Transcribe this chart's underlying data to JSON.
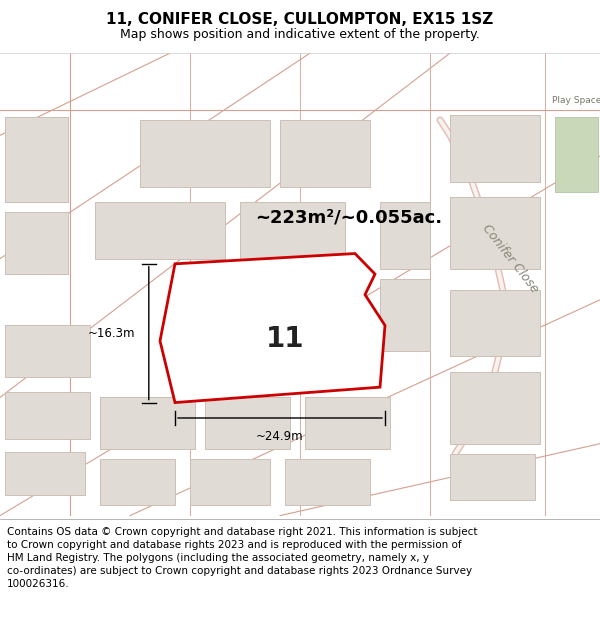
{
  "title": "11, CONIFER CLOSE, CULLOMPTON, EX15 1SZ",
  "subtitle": "Map shows position and indicative extent of the property.",
  "area_label": "~223m²/~0.055ac.",
  "plot_number": "11",
  "width_label": "~24.9m",
  "height_label": "~16.3m",
  "street_label": "Conifer Close",
  "play_space_label": "Play Space",
  "footer": "Contains OS data © Crown copyright and database right 2021. This information is subject\nto Crown copyright and database rights 2023 and is reproduced with the permission of\nHM Land Registry. The polygons (including the associated geometry, namely x, y\nco-ordinates) are subject to Crown copyright and database rights 2023 Ordnance Survey\n100026316.",
  "map_bg": "#f5f3f0",
  "building_fill": "#e0dbd5",
  "building_stroke": "#ccbfb5",
  "plot_fill": "#ffffff",
  "plot_stroke": "#cc0000",
  "road_color": "#e8b8b0",
  "road_line_color": "#d4a090",
  "green_color": "#c8d8b8",
  "title_fontsize": 11,
  "subtitle_fontsize": 9,
  "footer_fontsize": 7.5
}
